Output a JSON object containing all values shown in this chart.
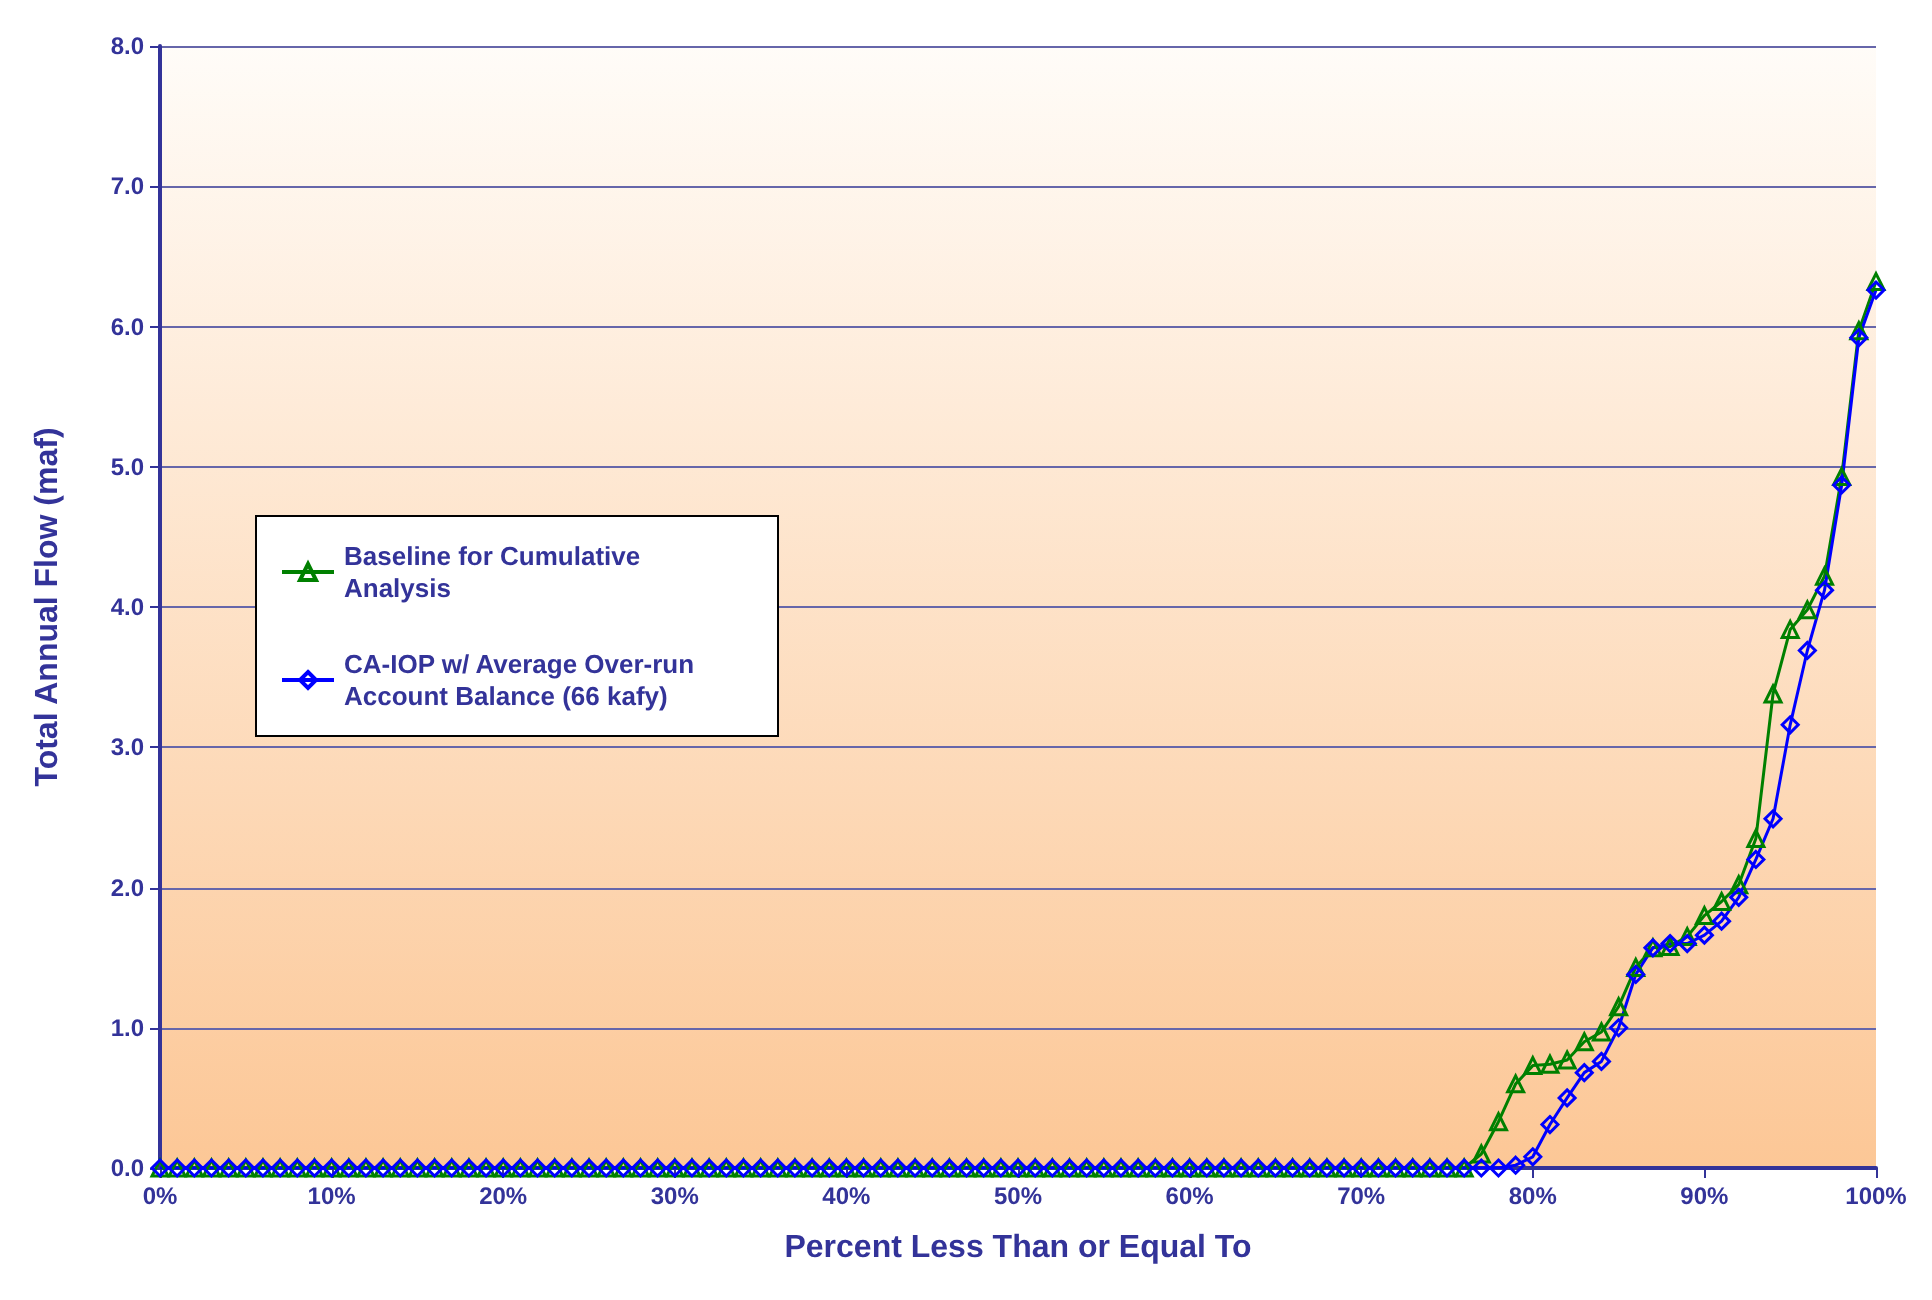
{
  "chart_data": {
    "type": "line",
    "xlabel": "Percent Less Than or Equal To",
    "ylabel": "Total Annual Flow (maf)",
    "x": [
      0,
      1,
      2,
      3,
      4,
      5,
      6,
      7,
      8,
      9,
      10,
      11,
      12,
      13,
      14,
      15,
      16,
      17,
      18,
      19,
      20,
      21,
      22,
      23,
      24,
      25,
      26,
      27,
      28,
      29,
      30,
      31,
      32,
      33,
      34,
      35,
      36,
      37,
      38,
      39,
      40,
      41,
      42,
      43,
      44,
      45,
      46,
      47,
      48,
      49,
      50,
      51,
      52,
      53,
      54,
      55,
      56,
      57,
      58,
      59,
      60,
      61,
      62,
      63,
      64,
      65,
      66,
      67,
      68,
      69,
      70,
      71,
      72,
      73,
      74,
      75,
      76,
      77,
      78,
      79,
      80,
      81,
      82,
      83,
      84,
      85,
      86,
      87,
      88,
      89,
      90,
      91,
      92,
      93,
      94,
      95,
      96,
      97,
      98,
      99,
      100
    ],
    "series": [
      {
        "name": "Baseline for Cumulative Analysis",
        "color": "#008000",
        "marker": "triangle",
        "values": [
          0,
          0,
          0,
          0,
          0,
          0,
          0,
          0,
          0,
          0,
          0,
          0,
          0,
          0,
          0,
          0,
          0,
          0,
          0,
          0,
          0,
          0,
          0,
          0,
          0,
          0,
          0,
          0,
          0,
          0,
          0,
          0,
          0,
          0,
          0,
          0,
          0,
          0,
          0,
          0,
          0,
          0,
          0,
          0,
          0,
          0,
          0,
          0,
          0,
          0,
          0,
          0,
          0,
          0,
          0,
          0,
          0,
          0,
          0,
          0,
          0,
          0,
          0,
          0,
          0,
          0,
          0,
          0,
          0,
          0,
          0,
          0,
          0,
          0,
          0,
          0,
          0,
          0.1,
          0.33,
          0.6,
          0.73,
          0.74,
          0.77,
          0.9,
          0.97,
          1.15,
          1.43,
          1.57,
          1.58,
          1.65,
          1.8,
          1.9,
          2.02,
          2.35,
          3.38,
          3.84,
          3.98,
          4.22,
          4.93,
          5.97,
          6.32
        ]
      },
      {
        "name": "CA-IOP w/ Average Over-run Account Balance (66 kafy)",
        "color": "#0000ff",
        "marker": "diamond",
        "values": [
          0,
          0,
          0,
          0,
          0,
          0,
          0,
          0,
          0,
          0,
          0,
          0,
          0,
          0,
          0,
          0,
          0,
          0,
          0,
          0,
          0,
          0,
          0,
          0,
          0,
          0,
          0,
          0,
          0,
          0,
          0,
          0,
          0,
          0,
          0,
          0,
          0,
          0,
          0,
          0,
          0,
          0,
          0,
          0,
          0,
          0,
          0,
          0,
          0,
          0,
          0,
          0,
          0,
          0,
          0,
          0,
          0,
          0,
          0,
          0,
          0,
          0,
          0,
          0,
          0,
          0,
          0,
          0,
          0,
          0,
          0,
          0,
          0,
          0,
          0,
          0,
          0,
          0,
          0,
          0.02,
          0.08,
          0.31,
          0.5,
          0.68,
          0.76,
          1.0,
          1.38,
          1.57,
          1.6,
          1.6,
          1.66,
          1.76,
          1.93,
          2.2,
          2.49,
          3.16,
          3.69,
          4.12,
          4.87,
          5.92,
          6.26
        ]
      }
    ],
    "xlim": [
      0,
      100
    ],
    "xticks": [
      {
        "value": 0,
        "label": "0%"
      },
      {
        "value": 10,
        "label": "10%"
      },
      {
        "value": 20,
        "label": "20%"
      },
      {
        "value": 30,
        "label": "30%"
      },
      {
        "value": 40,
        "label": "40%"
      },
      {
        "value": 50,
        "label": "50%"
      },
      {
        "value": 60,
        "label": "60%"
      },
      {
        "value": 70,
        "label": "70%"
      },
      {
        "value": 80,
        "label": "80%"
      },
      {
        "value": 90,
        "label": "90%"
      },
      {
        "value": 100,
        "label": "100%"
      }
    ],
    "ylim": [
      0,
      8
    ],
    "yticks": [
      {
        "value": 0,
        "label": "0.0"
      },
      {
        "value": 1,
        "label": "1.0"
      },
      {
        "value": 2,
        "label": "2.0"
      },
      {
        "value": 3,
        "label": "3.0"
      },
      {
        "value": 4,
        "label": "4.0"
      },
      {
        "value": 5,
        "label": "5.0"
      },
      {
        "value": 6,
        "label": "6.0"
      },
      {
        "value": 7,
        "label": "7.0"
      },
      {
        "value": 8,
        "label": "8.0"
      }
    ],
    "grid": "y",
    "legend": "left",
    "line_style": "solid"
  }
}
